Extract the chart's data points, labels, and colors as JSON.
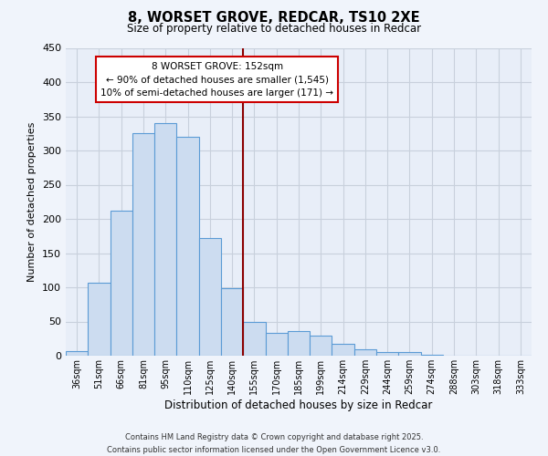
{
  "title": "8, WORSET GROVE, REDCAR, TS10 2XE",
  "subtitle": "Size of property relative to detached houses in Redcar",
  "xlabel": "Distribution of detached houses by size in Redcar",
  "ylabel": "Number of detached properties",
  "bar_labels": [
    "36sqm",
    "51sqm",
    "66sqm",
    "81sqm",
    "95sqm",
    "110sqm",
    "125sqm",
    "140sqm",
    "155sqm",
    "170sqm",
    "185sqm",
    "199sqm",
    "214sqm",
    "229sqm",
    "244sqm",
    "259sqm",
    "274sqm",
    "288sqm",
    "303sqm",
    "318sqm",
    "333sqm"
  ],
  "bar_values": [
    7,
    107,
    212,
    325,
    340,
    320,
    172,
    99,
    50,
    33,
    36,
    29,
    18,
    9,
    5,
    5,
    1,
    0,
    0,
    0,
    0
  ],
  "bar_color": "#ccdcf0",
  "bar_edge_color": "#5b9bd5",
  "vline_x_index": 8,
  "vline_color": "#8b0000",
  "ylim": [
    0,
    450
  ],
  "yticks": [
    0,
    50,
    100,
    150,
    200,
    250,
    300,
    350,
    400,
    450
  ],
  "annotation_title": "8 WORSET GROVE: 152sqm",
  "annotation_line1": "← 90% of detached houses are smaller (1,545)",
  "annotation_line2": "10% of semi-detached houses are larger (171) →",
  "annotation_box_color": "#ffffff",
  "annotation_box_edge": "#cc0000",
  "footer1": "Contains HM Land Registry data © Crown copyright and database right 2025.",
  "footer2": "Contains public sector information licensed under the Open Government Licence v3.0.",
  "bg_color": "#f0f4fb",
  "plot_bg_color": "#e8eef8",
  "grid_color": "#c8d0dc"
}
